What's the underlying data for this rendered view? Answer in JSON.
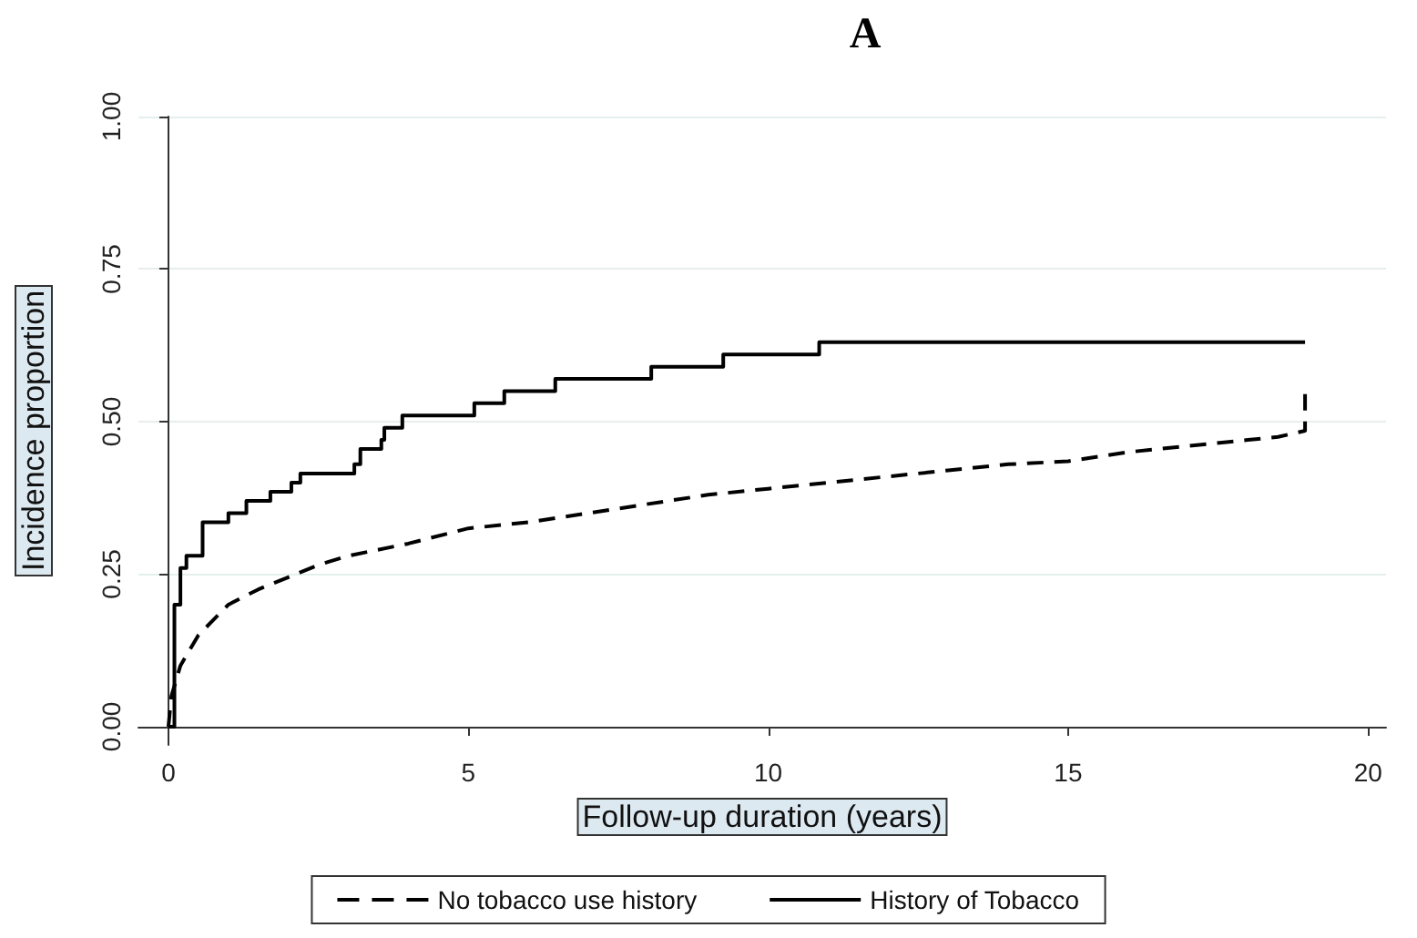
{
  "chart_data": {
    "type": "line",
    "title": "A",
    "xlabel": "Follow-up duration (years)",
    "ylabel": "Incidence proportion",
    "xlim": [
      -0.5,
      20.3
    ],
    "xticks": [
      0,
      5,
      10,
      15,
      20
    ],
    "ylim": [
      -0.03,
      1
    ],
    "yticks": [
      {
        "value": 0,
        "label": "0.00"
      },
      {
        "value": 0.25,
        "label": "0.25"
      },
      {
        "value": 0.5,
        "label": "0.50"
      },
      {
        "value": 0.75,
        "label": "0.75"
      },
      {
        "value": 1,
        "label": "1.00"
      }
    ],
    "grid": "y",
    "legend": "bottom",
    "marker": "none",
    "series": [
      {
        "name": "No tobacco use history",
        "type": "line",
        "line_style": "dashed",
        "color": "#000000",
        "x": [
          0,
          0.05,
          0.2,
          0.5,
          1,
          1.5,
          2,
          2.5,
          3,
          4,
          5,
          6,
          7,
          8,
          9,
          10,
          11,
          12,
          13,
          14,
          15,
          16,
          17,
          18,
          18.5,
          18.95,
          18.95
        ],
        "values": [
          0,
          0.05,
          0.1,
          0.15,
          0.2,
          0.225,
          0.245,
          0.265,
          0.28,
          0.3,
          0.325,
          0.335,
          0.35,
          0.365,
          0.38,
          0.39,
          0.4,
          0.41,
          0.42,
          0.43,
          0.435,
          0.45,
          0.46,
          0.47,
          0.475,
          0.485,
          0.55
        ]
      },
      {
        "name": "History of Tobacco",
        "type": "step",
        "line_style": "solid",
        "color": "#000000",
        "x": [
          0,
          0.1,
          0.2,
          0.3,
          0.57,
          1.0,
          1.3,
          1.7,
          2.05,
          2.2,
          3.1,
          3.2,
          3.55,
          3.6,
          3.9,
          5.1,
          5.6,
          6.45,
          8.05,
          9.25,
          10.85,
          18.95
        ],
        "values": [
          0,
          0.2,
          0.26,
          0.28,
          0.335,
          0.35,
          0.37,
          0.385,
          0.4,
          0.415,
          0.43,
          0.455,
          0.47,
          0.49,
          0.51,
          0.53,
          0.55,
          0.57,
          0.59,
          0.61,
          0.63,
          0.63
        ]
      }
    ]
  }
}
